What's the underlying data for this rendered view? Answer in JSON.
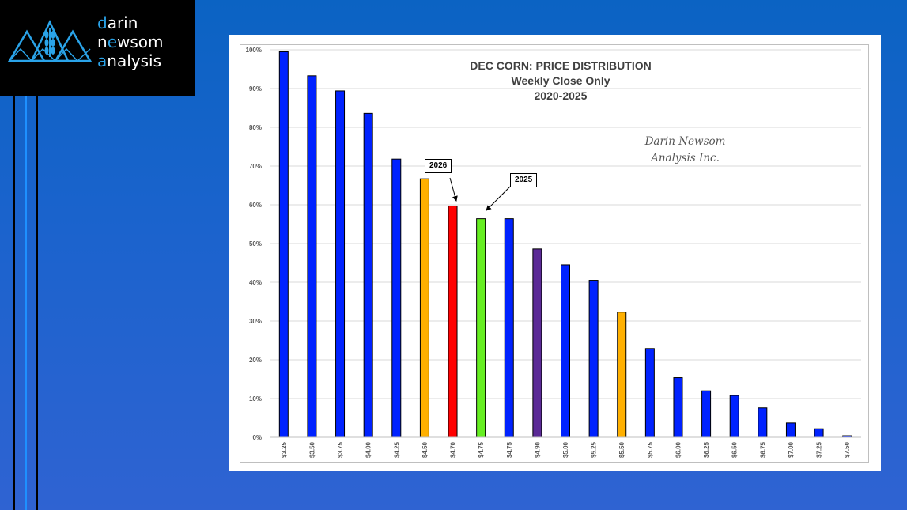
{
  "branding": {
    "line1_accent": "d",
    "line1_rest": "arin",
    "line2_start": "n",
    "line2_accent": "e",
    "line2_mid": "w",
    "line2_rest": "som",
    "line3_accent": "a",
    "line3_rest": "nalysis"
  },
  "colors": {
    "accent": "#2aa3e8",
    "bar_default": "#0022ff",
    "bar_orange": "#ffb000",
    "bar_red": "#ff0000",
    "bar_green": "#66ee22",
    "bar_purple": "#5b2a96"
  },
  "chart_data": {
    "type": "bar",
    "title_lines": [
      "DEC CORN: PRICE DISTRIBUTION",
      "Weekly Close Only",
      "2020-2025"
    ],
    "watermark_lines": [
      "Darin Newsom",
      "Analysis Inc."
    ],
    "categories": [
      "$3.25",
      "$3.50",
      "$3.75",
      "$4.00",
      "$4.25",
      "$4.50",
      "$4.70",
      "$4.75",
      "$4.75",
      "$4.90",
      "$5.00",
      "$5.25",
      "$5.50",
      "$5.75",
      "$6.00",
      "$6.25",
      "$6.50",
      "$6.75",
      "$7.00",
      "$7.25",
      "$7.50"
    ],
    "values": [
      99.5,
      93.3,
      89.4,
      83.6,
      71.8,
      66.7,
      59.7,
      56.4,
      56.4,
      48.6,
      44.5,
      40.5,
      32.3,
      22.9,
      15.4,
      12.0,
      10.8,
      7.6,
      3.7,
      2.2,
      0.4
    ],
    "bar_colors": [
      "default",
      "default",
      "default",
      "default",
      "default",
      "orange",
      "red",
      "green",
      "default",
      "purple",
      "default",
      "default",
      "orange",
      "default",
      "default",
      "default",
      "default",
      "default",
      "default",
      "default",
      "default"
    ],
    "yticks": [
      "0%",
      "10%",
      "20%",
      "30%",
      "40%",
      "50%",
      "60%",
      "70%",
      "80%",
      "90%",
      "100%"
    ],
    "ylim": [
      0,
      100
    ],
    "xlabel": "",
    "ylabel": "",
    "grid": true,
    "annotations": [
      {
        "label": "2026",
        "target_index": 6
      },
      {
        "label": "2025",
        "target_index": 7
      }
    ]
  }
}
